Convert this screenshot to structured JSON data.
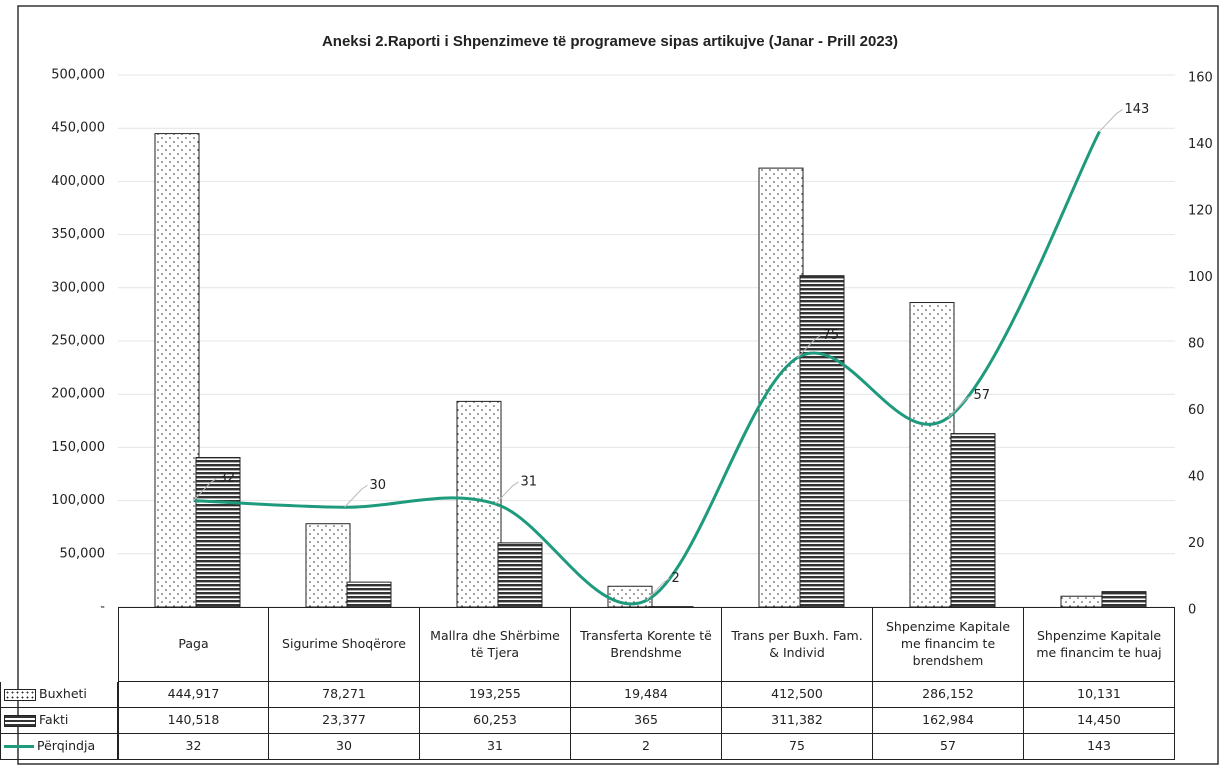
{
  "chart_data": {
    "type": "bar",
    "title": "Aneksi 2.Raporti i Shpenzimeve të programeve sipas artikujve (Janar - Prill 2023)",
    "categories": [
      "Paga",
      "Sigurime Shoqërore",
      "Mallra dhe Shërbime të Tjera",
      "Transferta Korente të Brendshme",
      "Trans per Buxh. Fam. & Individ",
      "Shpenzime Kapitale me financim te brendshem",
      "Shpenzime Kapitale me financim te huaj"
    ],
    "series": [
      {
        "name": "Buxheti",
        "type": "bar",
        "color": "#ffffff",
        "values": [
          444917,
          78271,
          193255,
          19484,
          412500,
          286152,
          10131
        ],
        "value_labels": [
          "444,917",
          "78,271",
          "193,255",
          "19,484",
          "412,500",
          "286,152",
          "10,131"
        ]
      },
      {
        "name": "Fakti",
        "type": "bar",
        "color": "#333333",
        "values": [
          140518,
          23377,
          60253,
          365,
          311382,
          162984,
          14450
        ],
        "value_labels": [
          "140,518",
          "23,377",
          "60,253",
          "365",
          "311,382",
          "162,984",
          "14,450"
        ]
      },
      {
        "name": "Përqindja",
        "type": "line",
        "axis": "y2",
        "color": "#1e9a7c",
        "values": [
          32,
          30,
          31,
          2,
          75,
          57,
          143
        ]
      }
    ],
    "ylim": [
      0,
      500000
    ],
    "yticks": [
      {
        "value": 0,
        "label": "-"
      },
      {
        "value": 50000,
        "label": "50,000"
      },
      {
        "value": 100000,
        "label": "100,000"
      },
      {
        "value": 150000,
        "label": "150,000"
      },
      {
        "value": 200000,
        "label": "200,000"
      },
      {
        "value": 250000,
        "label": "250,000"
      },
      {
        "value": 300000,
        "label": "300,000"
      },
      {
        "value": 350000,
        "label": "350,000"
      },
      {
        "value": 400000,
        "label": "400,000"
      },
      {
        "value": 450000,
        "label": "450,000"
      },
      {
        "value": 500000,
        "label": "500,000"
      }
    ],
    "y2lim": [
      0,
      160
    ],
    "y2ticks": [
      0,
      20,
      40,
      60,
      80,
      100,
      120,
      140,
      160
    ],
    "grid": true
  }
}
